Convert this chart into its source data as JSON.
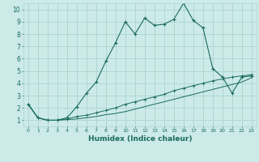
{
  "xlabel": "Humidex (Indice chaleur)",
  "bg_color": "#cceae8",
  "grid_color": "#aad4d0",
  "line_color": "#1a6b5e",
  "xlim": [
    -0.5,
    23.5
  ],
  "ylim": [
    0.5,
    10.5
  ],
  "xticks": [
    0,
    1,
    2,
    3,
    4,
    5,
    6,
    7,
    8,
    9,
    10,
    11,
    12,
    13,
    14,
    15,
    16,
    17,
    18,
    19,
    20,
    21,
    22,
    23
  ],
  "yticks": [
    1,
    2,
    3,
    4,
    5,
    6,
    7,
    8,
    9,
    10
  ],
  "series1_x": [
    0,
    1,
    2,
    3,
    4,
    5,
    6,
    7,
    8,
    9,
    10,
    11,
    12,
    13,
    14,
    15,
    16,
    17,
    18,
    19,
    20,
    21,
    22,
    23
  ],
  "series1_y": [
    2.3,
    1.2,
    1.0,
    1.0,
    1.2,
    2.1,
    3.2,
    4.1,
    5.8,
    7.3,
    9.0,
    8.0,
    9.3,
    8.7,
    8.8,
    9.2,
    10.5,
    9.1,
    8.5,
    5.2,
    4.5,
    3.2,
    4.5,
    4.6
  ],
  "series2_x": [
    0,
    1,
    2,
    3,
    4,
    5,
    6,
    7,
    8,
    9,
    10,
    11,
    12,
    13,
    14,
    15,
    16,
    17,
    18,
    19,
    20,
    21,
    22,
    23
  ],
  "series2_y": [
    2.3,
    1.2,
    1.0,
    1.0,
    1.1,
    1.3,
    1.4,
    1.6,
    1.8,
    2.0,
    2.3,
    2.5,
    2.7,
    2.9,
    3.1,
    3.4,
    3.6,
    3.8,
    4.0,
    4.2,
    4.35,
    4.5,
    4.6,
    4.7
  ],
  "series3_x": [
    0,
    1,
    2,
    3,
    4,
    5,
    6,
    7,
    8,
    9,
    10,
    11,
    12,
    13,
    14,
    15,
    16,
    17,
    18,
    19,
    20,
    21,
    22,
    23
  ],
  "series3_y": [
    2.3,
    1.2,
    1.0,
    1.0,
    1.05,
    1.1,
    1.2,
    1.3,
    1.45,
    1.55,
    1.7,
    1.9,
    2.1,
    2.3,
    2.5,
    2.7,
    2.9,
    3.1,
    3.3,
    3.5,
    3.7,
    3.9,
    4.1,
    4.45
  ]
}
